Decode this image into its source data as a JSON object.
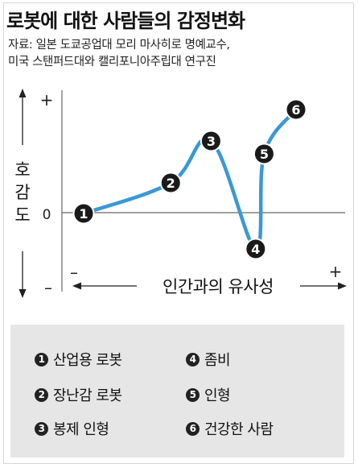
{
  "title": "로봇에 대한 사람들의 감정변화",
  "source_lines": [
    "자료: 일본 도쿄공업대 모리 마사히로 명예교수,",
    "미국 스탠퍼드대와 캘리포니아주립대 연구진"
  ],
  "chart_data": {
    "type": "line",
    "ylabel": "호감도",
    "ylabel_chars": [
      "호",
      "감",
      "도"
    ],
    "xlabel": "인간과의 유사성",
    "y_plus": "+",
    "y_zero": "0",
    "y_minus": "–",
    "x_minus": "–",
    "x_plus": "+",
    "colors": {
      "line": "#3a98d6",
      "marker": "#1a1a1a",
      "axis": "#555555"
    },
    "points": [
      {
        "n": "1",
        "x": 0.0,
        "y": 0.0
      },
      {
        "n": "2",
        "x": 0.41,
        "y": 0.38
      },
      {
        "n": "3",
        "x": 0.6,
        "y": 0.9
      },
      {
        "n": "4",
        "x": 0.81,
        "y": -0.44
      },
      {
        "n": "5",
        "x": 0.85,
        "y": 0.74
      },
      {
        "n": "6",
        "x": 1.0,
        "y": 1.29
      }
    ]
  },
  "legend": [
    {
      "n": "1",
      "label": "산업용 로봇"
    },
    {
      "n": "4",
      "label": "좀비"
    },
    {
      "n": "2",
      "label": "장난감 로봇"
    },
    {
      "n": "5",
      "label": "인형"
    },
    {
      "n": "3",
      "label": "봉제 인형"
    },
    {
      "n": "6",
      "label": "건강한 사람"
    }
  ]
}
